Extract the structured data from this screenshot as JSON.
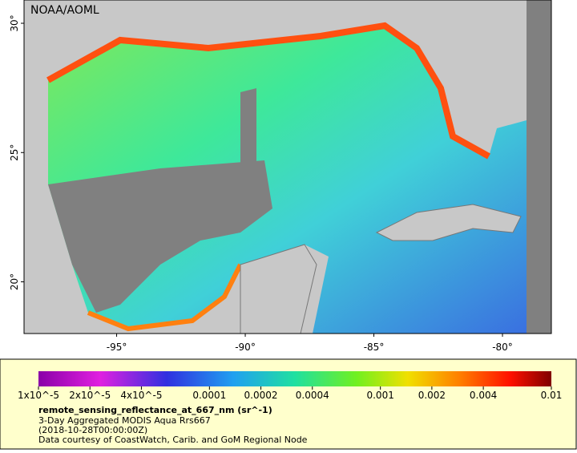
{
  "map": {
    "credit": "NOAA/AOML",
    "lonlim": [
      -98.6,
      -78.1
    ],
    "latlim": [
      18.0,
      30.9
    ],
    "lon_ticks": [
      {
        "value": -95,
        "label": "-95°"
      },
      {
        "value": -90,
        "label": "-90°"
      },
      {
        "value": -85,
        "label": "-85°"
      },
      {
        "value": -80,
        "label": "-80°"
      }
    ],
    "lat_ticks": [
      {
        "value": 30,
        "label": "30°"
      },
      {
        "value": 25,
        "label": "25°"
      },
      {
        "value": 20,
        "label": "20°"
      }
    ]
  },
  "colorbar": {
    "log": true,
    "lim": [
      1e-05,
      0.01
    ],
    "ticks": [
      {
        "value": 1e-05,
        "label": "1x10^-5"
      },
      {
        "value": 2e-05,
        "label": "2x10^-5"
      },
      {
        "value": 4e-05,
        "label": "4x10^-5"
      },
      {
        "value": 0.0001,
        "label": "0.0001"
      },
      {
        "value": 0.0002,
        "label": "0.0002"
      },
      {
        "value": 0.0004,
        "label": "0.0004"
      },
      {
        "value": 0.001,
        "label": "0.001"
      },
      {
        "value": 0.002,
        "label": "0.002"
      },
      {
        "value": 0.004,
        "label": "0.004"
      },
      {
        "value": 0.01,
        "label": "0.01"
      }
    ],
    "title": "remote_sensing_reflectance_at_667_nm (sr^-1)",
    "lines": [
      "3-Day Aggregated MODIS Aqua Rrs667",
      "(2018-10-28T00:00:00Z)",
      "Data courtesy of CoastWatch, Carib. and GoM Regional Node"
    ]
  }
}
